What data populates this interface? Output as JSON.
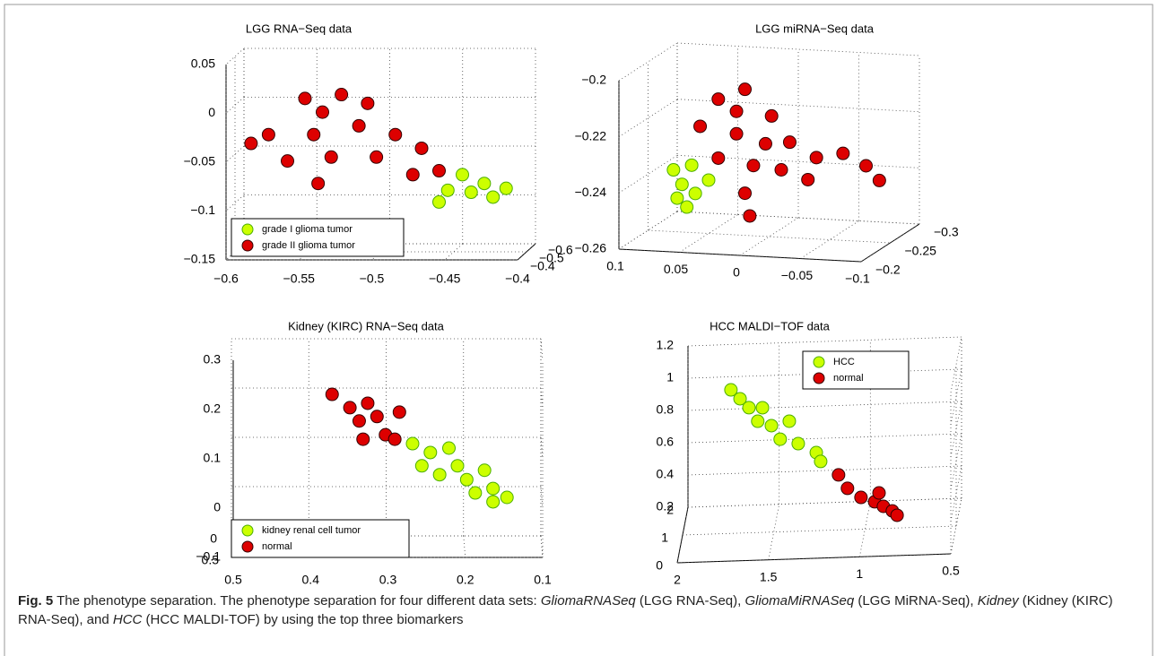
{
  "chart_data": [
    {
      "type": "scatter3d",
      "title": "LGG RNA−Seq data",
      "grid": true,
      "legend": "lower left",
      "xlim": [
        -0.6,
        -0.4
      ],
      "ylim": [
        -0.6,
        -0.4
      ],
      "zlim": [
        -0.15,
        0.05
      ],
      "xticks": [
        {
          "value": -0.6,
          "label": "−0.6"
        },
        {
          "value": -0.55,
          "label": "−0.55"
        },
        {
          "value": -0.5,
          "label": "−0.5"
        },
        {
          "value": -0.45,
          "label": "−0.45"
        },
        {
          "value": -0.4,
          "label": "−0.4"
        }
      ],
      "yticks": [
        {
          "value": -0.6,
          "label": "−0.6"
        },
        {
          "value": -0.5,
          "label": "−0.5"
        },
        {
          "value": -0.4,
          "label": "−0.4"
        }
      ],
      "zticks": [
        {
          "value": -0.15,
          "label": "−0.15"
        },
        {
          "value": -0.1,
          "label": "−0.1"
        },
        {
          "value": -0.05,
          "label": "−0.05"
        },
        0,
        0.05
      ],
      "series": [
        {
          "name": "grade I glioma tumor",
          "color": "#ccff00",
          "edgecolor": "#4caf00",
          "x": [
            -0.444,
            -0.429,
            -0.414,
            -0.438,
            -0.423,
            -0.46,
            -0.454
          ],
          "y": [
            -0.5,
            -0.5,
            -0.5,
            -0.5,
            -0.5,
            -0.5,
            -0.5
          ],
          "z": [
            -0.071,
            -0.08,
            -0.085,
            -0.089,
            -0.094,
            -0.099,
            -0.087
          ]
        },
        {
          "name": "grade II glioma tumor",
          "color": "#dd0000",
          "edgecolor": "#330000",
          "x": [
            -0.552,
            -0.527,
            -0.577,
            -0.546,
            -0.515,
            -0.49,
            -0.564,
            -0.534,
            -0.503,
            -0.472,
            -0.46,
            -0.589,
            -0.54,
            -0.543,
            -0.478,
            -0.509
          ],
          "y": [
            -0.5,
            -0.5,
            -0.5,
            -0.5,
            -0.5,
            -0.5,
            -0.5,
            -0.5,
            -0.5,
            -0.5,
            -0.5,
            -0.5,
            -0.5,
            -0.5,
            -0.5,
            -0.5
          ],
          "z": [
            0.007,
            0.011,
            -0.03,
            -0.03,
            -0.021,
            -0.03,
            -0.057,
            -0.053,
            -0.053,
            -0.044,
            -0.067,
            -0.039,
            -0.007,
            -0.08,
            -0.071,
            0.002
          ]
        }
      ]
    },
    {
      "type": "scatter3d",
      "title": "LGG miRNA−Seq data",
      "grid": true,
      "xlim": [
        0.1,
        -0.1
      ],
      "ylim": [
        -0.2,
        -0.3
      ],
      "zlim": [
        -0.26,
        -0.2
      ],
      "xticks": [
        0.1,
        0.05,
        0,
        {
          "value": -0.05,
          "label": "−0.05"
        },
        {
          "value": -0.1,
          "label": "−0.1"
        }
      ],
      "yticks": [
        {
          "value": -0.2,
          "label": "−0.2"
        },
        {
          "value": -0.25,
          "label": "−0.25"
        },
        {
          "value": -0.3,
          "label": "−0.3"
        }
      ],
      "zticks": [
        {
          "value": -0.26,
          "label": "−0.26"
        },
        {
          "value": -0.24,
          "label": "−0.24"
        },
        {
          "value": -0.22,
          "label": "−0.22"
        },
        {
          "value": -0.2,
          "label": "−0.2"
        }
      ],
      "series": [
        {
          "color": "#ccff00",
          "edgecolor": "#4caf00",
          "x": [
            0.079,
            0.072,
            0.064,
            0.076,
            0.061,
            0.05,
            0.068
          ],
          "y": [
            -0.25,
            -0.25,
            -0.25,
            -0.25,
            -0.25,
            -0.25,
            -0.25
          ],
          "z": [
            -0.238,
            -0.243,
            -0.236,
            -0.248,
            -0.246,
            -0.241,
            -0.251
          ]
        },
        {
          "color": "#dd0000",
          "edgecolor": "#330000",
          "x": [
            0.042,
            0.02,
            0.057,
            0.027,
            -0.002,
            -0.017,
            0.042,
            0.013,
            -0.01,
            -0.039,
            -0.061,
            -0.08,
            -0.091,
            0.02,
            0.016,
            0.027,
            0.003,
            -0.032
          ],
          "y": [
            -0.25,
            -0.25,
            -0.25,
            -0.25,
            -0.25,
            -0.25,
            -0.25,
            -0.25,
            -0.25,
            -0.25,
            -0.25,
            -0.25,
            -0.25,
            -0.25,
            -0.25,
            -0.25,
            -0.25,
            -0.25
          ],
          "z": [
            -0.212,
            -0.208,
            -0.222,
            -0.224,
            -0.217,
            -0.226,
            -0.233,
            -0.235,
            -0.236,
            -0.231,
            -0.229,
            -0.233,
            -0.238,
            -0.245,
            -0.253,
            -0.216,
            -0.227,
            -0.239
          ]
        }
      ]
    },
    {
      "type": "scatter3d",
      "title": "Kidney (KIRC) RNA−Seq data",
      "grid": true,
      "legend": "lower left",
      "xlim": [
        0.5,
        0.1
      ],
      "ylim": [
        0,
        0.5
      ],
      "zlim": [
        -0.1,
        0.3
      ],
      "xticks": [
        0.5,
        0.4,
        0.3,
        0.2,
        0.1
      ],
      "yticks": [
        0,
        0.5
      ],
      "zticks": [
        {
          "value": -0.1,
          "label": "−0.1"
        },
        0,
        0.1,
        0.2,
        0.3
      ],
      "series": [
        {
          "name": "kidney renal cell tumor",
          "color": "#ccff00",
          "edgecolor": "#4caf00",
          "x": [
            0.267,
            0.244,
            0.255,
            0.22,
            0.209,
            0.197,
            0.174,
            0.186,
            0.163,
            0.145,
            0.232,
            0.163
          ],
          "y": [
            0.25,
            0.25,
            0.25,
            0.25,
            0.25,
            0.25,
            0.25,
            0.25,
            0.25,
            0.25,
            0.25,
            0.25
          ],
          "z": [
            0.109,
            0.091,
            0.064,
            0.1,
            0.064,
            0.036,
            0.055,
            0.009,
            0.018,
            0,
            0.046,
            -0.009
          ]
        },
        {
          "name": "normal",
          "color": "#dd0000",
          "edgecolor": "#330000",
          "x": [
            0.371,
            0.348,
            0.336,
            0.325,
            0.313,
            0.302,
            0.284,
            0.29,
            0.331
          ],
          "y": [
            0.25,
            0.25,
            0.25,
            0.25,
            0.25,
            0.25,
            0.25,
            0.25,
            0.25
          ],
          "z": [
            0.209,
            0.182,
            0.155,
            0.191,
            0.164,
            0.127,
            0.173,
            0.118,
            0.118
          ]
        }
      ]
    },
    {
      "type": "scatter3d",
      "title": "HCC MALDI−TOF data",
      "grid": true,
      "legend": "upper right",
      "xlim": [
        2,
        0.5
      ],
      "ylim": [
        0,
        2
      ],
      "zlim": [
        0.2,
        1.2
      ],
      "xticks": [
        2,
        1.5,
        1,
        0.5
      ],
      "yticks": [
        0,
        1,
        2
      ],
      "zticks": [
        0.2,
        0.4,
        0.6,
        0.8,
        1,
        1.2
      ],
      "series": [
        {
          "name": "HCC",
          "color": "#ccff00",
          "edgecolor": "#4caf00",
          "x": [
            1.735,
            1.685,
            1.636,
            1.588,
            1.513,
            1.465,
            1.415,
            1.366,
            1.267,
            1.243,
            1.562
          ],
          "y": [
            1,
            1,
            1,
            1,
            1,
            1,
            1,
            1,
            1,
            1,
            1
          ],
          "z": [
            1.09,
            1.033,
            0.976,
            0.89,
            0.86,
            0.774,
            0.884,
            0.743,
            0.684,
            0.628,
            0.973
          ]
        },
        {
          "name": "normal",
          "color": "#dd0000",
          "edgecolor": "#330000",
          "x": [
            1.145,
            1.096,
            1.022,
            0.947,
            0.899,
            0.85,
            0.923,
            0.824
          ],
          "y": [
            1,
            1,
            1,
            1,
            1,
            1,
            1,
            1
          ],
          "z": [
            0.541,
            0.456,
            0.397,
            0.367,
            0.337,
            0.307,
            0.421,
            0.279
          ]
        }
      ]
    }
  ],
  "caption": {
    "label": "Fig. 5",
    "parts": [
      " The phenotype separation. The phenotype separation for four different data sets: ",
      "GliomaRNASeq",
      " (LGG RNA-Seq), ",
      "GliomaMiRNASeq",
      " (LGG MiRNA-Seq), ",
      "Kidney",
      " (Kidney (KIRC) RNA-Seq), and ",
      "HCC",
      " (HCC MALDI-TOF) by using the top three biomarkers"
    ]
  }
}
